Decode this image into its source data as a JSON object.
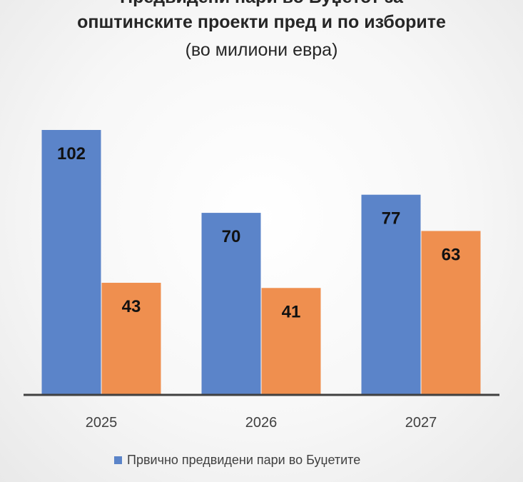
{
  "chart_data": {
    "type": "bar",
    "title_lines": [
      "Предвидени пари во Буџетот за",
      "општинските проекти пред и по изборите"
    ],
    "subtitle": "(во милиони евра)",
    "categories": [
      "2025",
      "2026",
      "2027"
    ],
    "series": [
      {
        "name": "Првично предвидени пари во Буџетите",
        "color": "#5b84c9",
        "values": [
          102,
          70,
          77
        ]
      },
      {
        "color": "#ef8f4f",
        "values": [
          43,
          41,
          63
        ]
      }
    ],
    "ylim": [
      0,
      102
    ],
    "grid": false,
    "legend_position": "bottom",
    "axis_color": "#404040"
  }
}
